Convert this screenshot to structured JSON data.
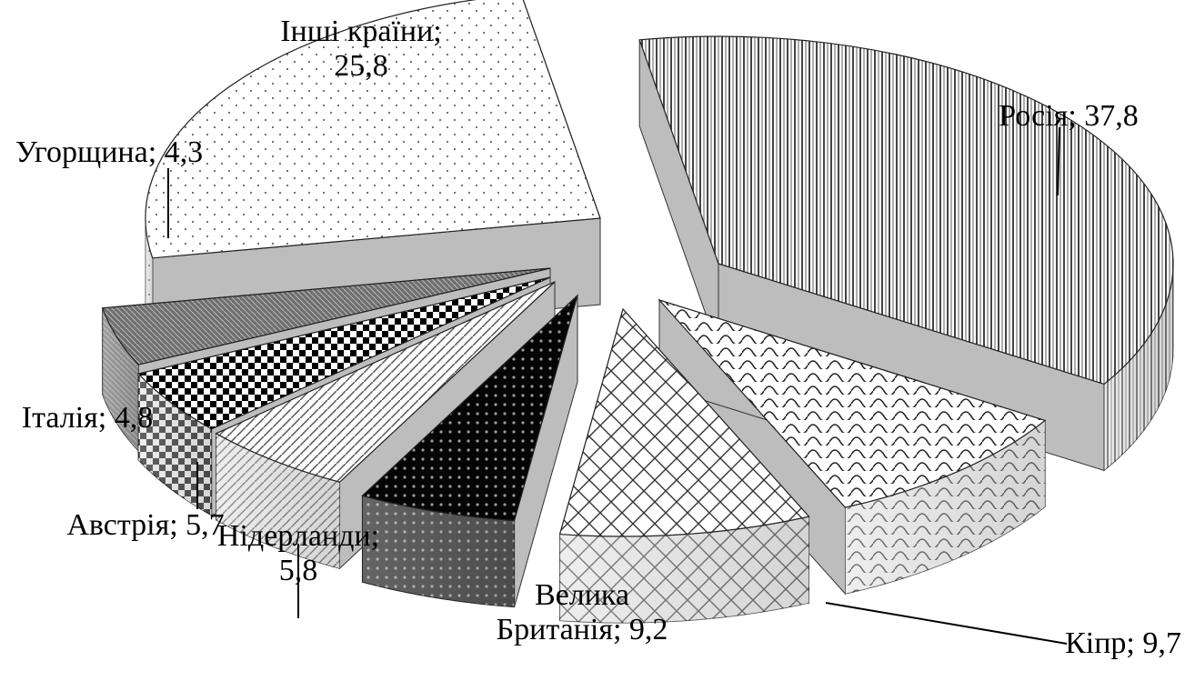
{
  "chart_data": {
    "type": "pie",
    "style": "3d-exploded",
    "title": "",
    "unit": "",
    "slices": [
      {
        "name": "Росія",
        "value": 37.8,
        "label_lines": [
          "Росія; 37,8"
        ],
        "pattern": "vertical-lines"
      },
      {
        "name": "Кіпр",
        "value": 9.7,
        "label_lines": [
          "Кіпр; 9,7"
        ],
        "pattern": "waves"
      },
      {
        "name": "Велика Британія",
        "value": 9.2,
        "label_lines": [
          "Велика",
          "Британія; 9,2"
        ],
        "pattern": "grid"
      },
      {
        "name": "Нідерланди",
        "value": 5.8,
        "label_lines": [
          "Нідерланди;",
          "5,8"
        ],
        "pattern": "black-dots"
      },
      {
        "name": "Австрія",
        "value": 5.7,
        "label_lines": [
          "Австрія; 5,7"
        ],
        "pattern": "diagonal-lines"
      },
      {
        "name": "Італія",
        "value": 4.8,
        "label_lines": [
          "Італія;  4,8"
        ],
        "pattern": "checker"
      },
      {
        "name": "Угорщина",
        "value": 4.3,
        "label_lines": [
          "Угорщина; 4,3"
        ],
        "pattern": "dense-grey"
      },
      {
        "name": "Інші країни",
        "value": 25.8,
        "label_lines": [
          "Інші країни;",
          "25,8"
        ],
        "pattern": "dots"
      }
    ],
    "legend": "none"
  }
}
